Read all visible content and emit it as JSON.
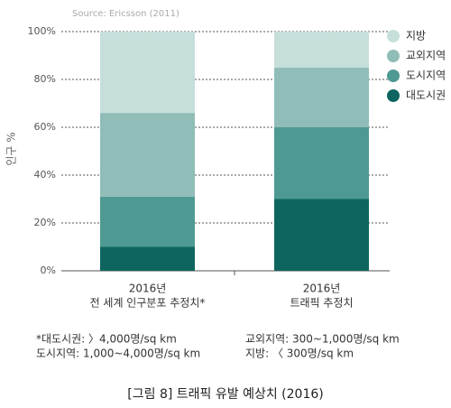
{
  "chart_data": {
    "type": "stacked-bar",
    "source": "Source: Ericsson (2011)",
    "ylabel": "인구 %",
    "categories": [
      [
        "2016년",
        "전 세계 인구분포 추정치*"
      ],
      [
        "2016년",
        "트래픽 추정치"
      ]
    ],
    "series": [
      {
        "name": "대도시권",
        "color": "#0e6560",
        "values": [
          10,
          30
        ]
      },
      {
        "name": "도시지역",
        "color": "#4e9a93",
        "values": [
          21,
          30
        ]
      },
      {
        "name": "교외지역",
        "color": "#90bdb7",
        "values": [
          35,
          25
        ]
      },
      {
        "name": "지방",
        "color": "#c6dfdb",
        "values": [
          34,
          15
        ]
      }
    ],
    "ylim": [
      0,
      100
    ],
    "yticks": [
      {
        "value": 0,
        "label": "0%"
      },
      {
        "value": 20,
        "label": "20%"
      },
      {
        "value": 40,
        "label": "40%"
      },
      {
        "value": 60,
        "label": "60%"
      },
      {
        "value": 80,
        "label": "80%"
      },
      {
        "value": 100,
        "label": "100%"
      }
    ],
    "grid": true,
    "legend": "top-right",
    "notes": [
      "*대도시권: 〉4,000명/sq km",
      "교외지역: 300~1,000명/sq km",
      "도시지역: 1,000~4,000명/sq km",
      "지방: 〈 300명/sq km"
    ],
    "caption": "[그림 8] 트래픽 유발 예상치 (2016)"
  }
}
